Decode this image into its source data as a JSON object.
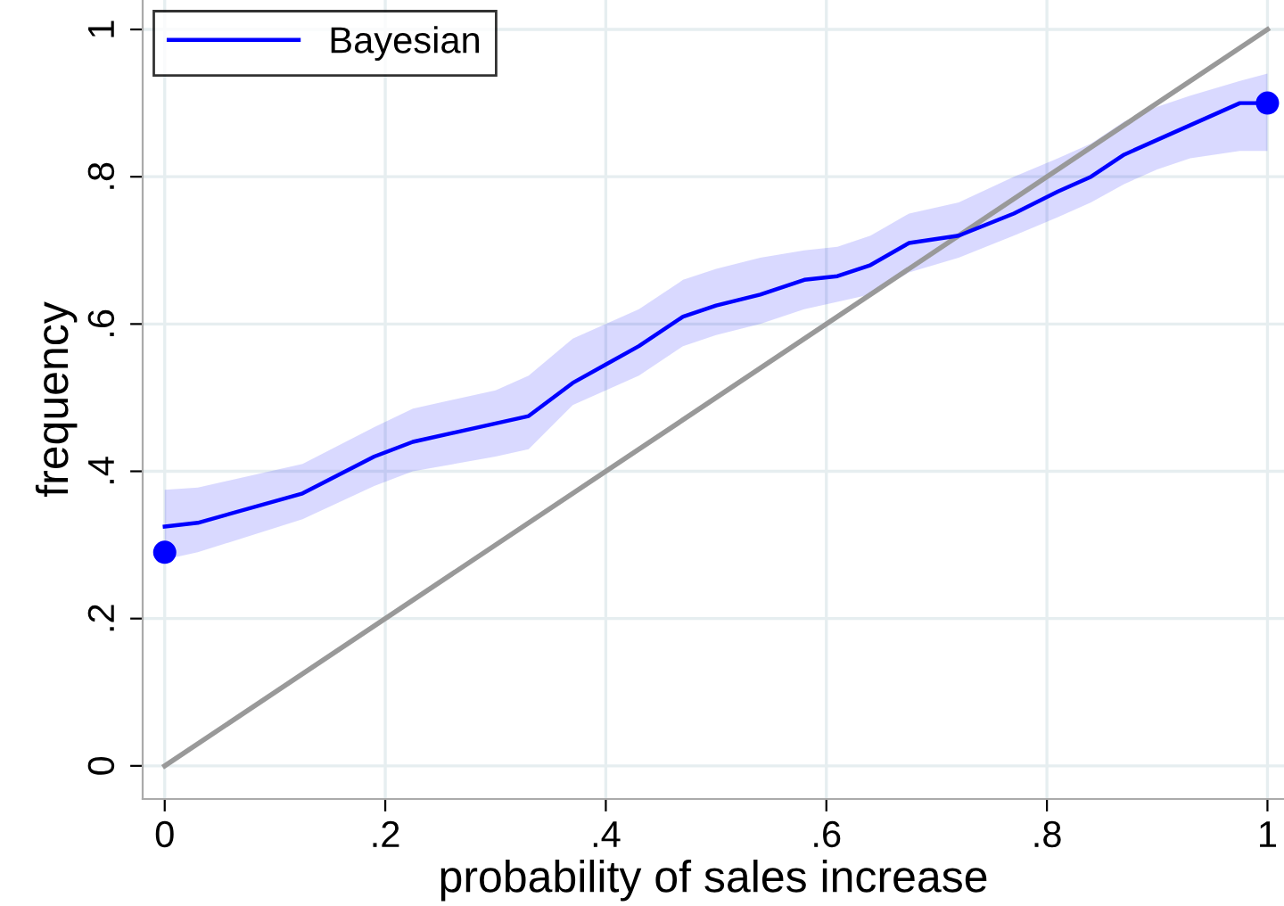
{
  "chart_data": {
    "type": "line",
    "xlabel": "probability of sales increase",
    "ylabel": "frequency",
    "xlim": [
      -0.02,
      1.015
    ],
    "ylim": [
      -0.045,
      1.04
    ],
    "xticks": [
      0,
      {
        "value": 0.2,
        "label": ".2"
      },
      {
        "value": 0.4,
        "label": ".4"
      },
      {
        "value": 0.6,
        "label": ".6"
      },
      {
        "value": 0.8,
        "label": ".8"
      },
      1
    ],
    "yticks": [
      0,
      {
        "value": 0.2,
        "label": ".2"
      },
      {
        "value": 0.4,
        "label": ".4"
      },
      {
        "value": 0.6,
        "label": ".6"
      },
      {
        "value": 0.8,
        "label": ".8"
      },
      1
    ],
    "grid": true,
    "legend": "top left",
    "series": [
      {
        "name": "Bayesian",
        "color": "#0000ff",
        "x": [
          0,
          0.03,
          0.125,
          0.19,
          0.225,
          0.3,
          0.33,
          0.37,
          0.4,
          0.43,
          0.47,
          0.5,
          0.54,
          0.58,
          0.61,
          0.64,
          0.675,
          0.72,
          0.77,
          0.81,
          0.84,
          0.87,
          0.9,
          0.93,
          0.975,
          1
        ],
        "values": [
          0.325,
          0.33,
          0.37,
          0.42,
          0.44,
          0.465,
          0.475,
          0.52,
          0.545,
          0.57,
          0.61,
          0.625,
          0.64,
          0.66,
          0.665,
          0.68,
          0.71,
          0.72,
          0.75,
          0.78,
          0.8,
          0.83,
          0.85,
          0.87,
          0.9,
          0.9
        ],
        "lower": [
          0.28,
          0.29,
          0.335,
          0.38,
          0.4,
          0.42,
          0.43,
          0.49,
          0.51,
          0.53,
          0.57,
          0.585,
          0.6,
          0.62,
          0.63,
          0.64,
          0.67,
          0.69,
          0.72,
          0.745,
          0.765,
          0.79,
          0.81,
          0.825,
          0.835,
          0.835
        ],
        "upper": [
          0.375,
          0.378,
          0.41,
          0.46,
          0.485,
          0.51,
          0.53,
          0.58,
          0.6,
          0.62,
          0.66,
          0.675,
          0.69,
          0.7,
          0.705,
          0.72,
          0.75,
          0.765,
          0.8,
          0.825,
          0.845,
          0.875,
          0.895,
          0.91,
          0.93,
          0.94
        ]
      },
      {
        "type": "line",
        "color": "#999999",
        "x": [
          0,
          1
        ],
        "values": [
          0,
          1
        ]
      },
      {
        "type": "scatter",
        "color": "#0000ff",
        "marker": "circle",
        "x": [
          0,
          1
        ],
        "values": [
          0.29,
          0.9
        ]
      }
    ]
  }
}
